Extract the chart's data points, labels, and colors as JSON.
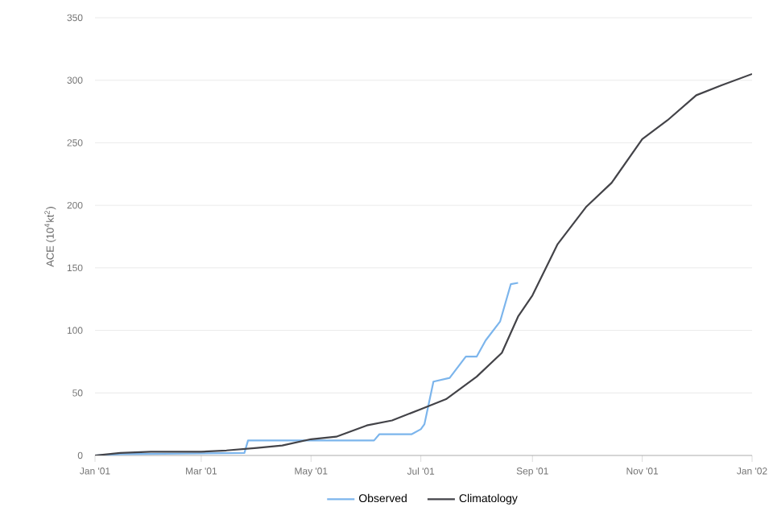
{
  "chart_data": {
    "type": "line",
    "ylabel": "ACE (10$^{4}$kt$^{2}$)",
    "xlim": [
      "2001-01-01",
      "2002-01-01"
    ],
    "xticks": [
      {
        "value": "2001-01-01",
        "label": "Jan '01"
      },
      {
        "value": "2001-03-01",
        "label": "Mar '01"
      },
      {
        "value": "2001-05-01",
        "label": "May '01"
      },
      {
        "value": "2001-07-01",
        "label": "Jul '01"
      },
      {
        "value": "2001-09-01",
        "label": "Sep '01"
      },
      {
        "value": "2001-11-01",
        "label": "Nov '01"
      },
      {
        "value": "2002-01-01",
        "label": "Jan '02"
      }
    ],
    "ylim": [
      0,
      350
    ],
    "yticks": [
      0,
      50,
      100,
      150,
      200,
      250,
      300,
      350
    ],
    "grid": "y",
    "legend": "bottom",
    "line_style": "solid",
    "series": [
      {
        "name": "Observed",
        "color": "#7cb5ec",
        "x": [
          "2001-01-01",
          "2001-01-15",
          "2001-03-25",
          "2001-03-27",
          "2001-06-05",
          "2001-06-08",
          "2001-06-26",
          "2001-07-01",
          "2001-07-03",
          "2001-07-08",
          "2001-07-17",
          "2001-07-26",
          "2001-08-01",
          "2001-08-06",
          "2001-08-14",
          "2001-08-20",
          "2001-08-24"
        ],
        "values": [
          0,
          1,
          2,
          12,
          12,
          17,
          17,
          21,
          25,
          59,
          62,
          79,
          79,
          92,
          107,
          137,
          138
        ]
      },
      {
        "name": "Climatology",
        "color": "#434348",
        "x": [
          "2001-01-01",
          "2001-01-15",
          "2001-02-01",
          "2001-03-01",
          "2001-03-15",
          "2001-04-01",
          "2001-04-15",
          "2001-05-01",
          "2001-05-15",
          "2001-06-01",
          "2001-06-15",
          "2001-07-01",
          "2001-07-15",
          "2001-08-01",
          "2001-08-15",
          "2001-08-24",
          "2001-09-01",
          "2001-09-15",
          "2001-10-01",
          "2001-10-15",
          "2001-11-01",
          "2001-11-15",
          "2001-12-01",
          "2001-12-15",
          "2002-01-01"
        ],
        "values": [
          0,
          2,
          3,
          3,
          4,
          6,
          8,
          13,
          15,
          24,
          28,
          37,
          45,
          63,
          82,
          111,
          128,
          169,
          199,
          218,
          253,
          268,
          288,
          296,
          305
        ]
      }
    ]
  }
}
